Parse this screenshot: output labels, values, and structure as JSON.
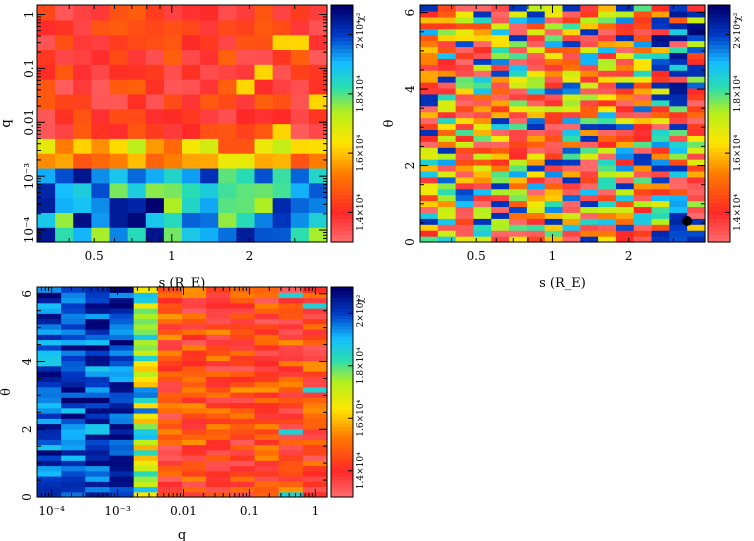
{
  "colorbar_label": "χ²",
  "colorbar_ticks": [
    "1.4×10⁴",
    "1.6×10⁴",
    "1.8×10⁴",
    "2×10⁴"
  ],
  "chart_data": [
    {
      "type": "heatmap",
      "xlabel": "s (R_E)",
      "ylabel": "q",
      "xscale": "log",
      "yscale": "log",
      "xlim": [
        0.3,
        4.0
      ],
      "ylim": [
        6e-05,
        1.5
      ],
      "xticks": [
        "0.5",
        "1",
        "2"
      ],
      "yticks": [
        "10⁻⁴",
        "10⁻³",
        "0.01",
        "0.1",
        "1"
      ],
      "value_label": "χ²",
      "value_range": [
        13000,
        21000
      ],
      "rows": 16,
      "cols": 16,
      "description_of_pattern": "low χ² (red) for q > 10^-3, high (green/blue) for q < 10^-3"
    },
    {
      "type": "heatmap",
      "xlabel": "s (R_E)",
      "ylabel": "θ",
      "xscale": "log",
      "yscale": "linear",
      "xlim": [
        0.3,
        4.0
      ],
      "ylim": [
        0,
        6.2
      ],
      "xticks": [
        "0.5",
        "1",
        "2"
      ],
      "yticks": [
        "0",
        "2",
        "4",
        "6"
      ],
      "value_label": "χ²",
      "value_range": [
        13000,
        21000
      ],
      "marker": {
        "s": 3.4,
        "theta": 0.55
      },
      "rows": 40,
      "cols": 16
    },
    {
      "type": "heatmap",
      "xlabel": "q",
      "ylabel": "θ",
      "xscale": "log",
      "yscale": "linear",
      "xlim": [
        6e-05,
        1.5
      ],
      "ylim": [
        0,
        6.2
      ],
      "xticks": [
        "10⁻⁴",
        "10⁻³",
        "0.01",
        "0.1",
        "1"
      ],
      "yticks": [
        "0",
        "2",
        "4",
        "6"
      ],
      "value_label": "χ²",
      "value_range": [
        13000,
        21000
      ],
      "rows": 40,
      "cols": 12
    }
  ]
}
